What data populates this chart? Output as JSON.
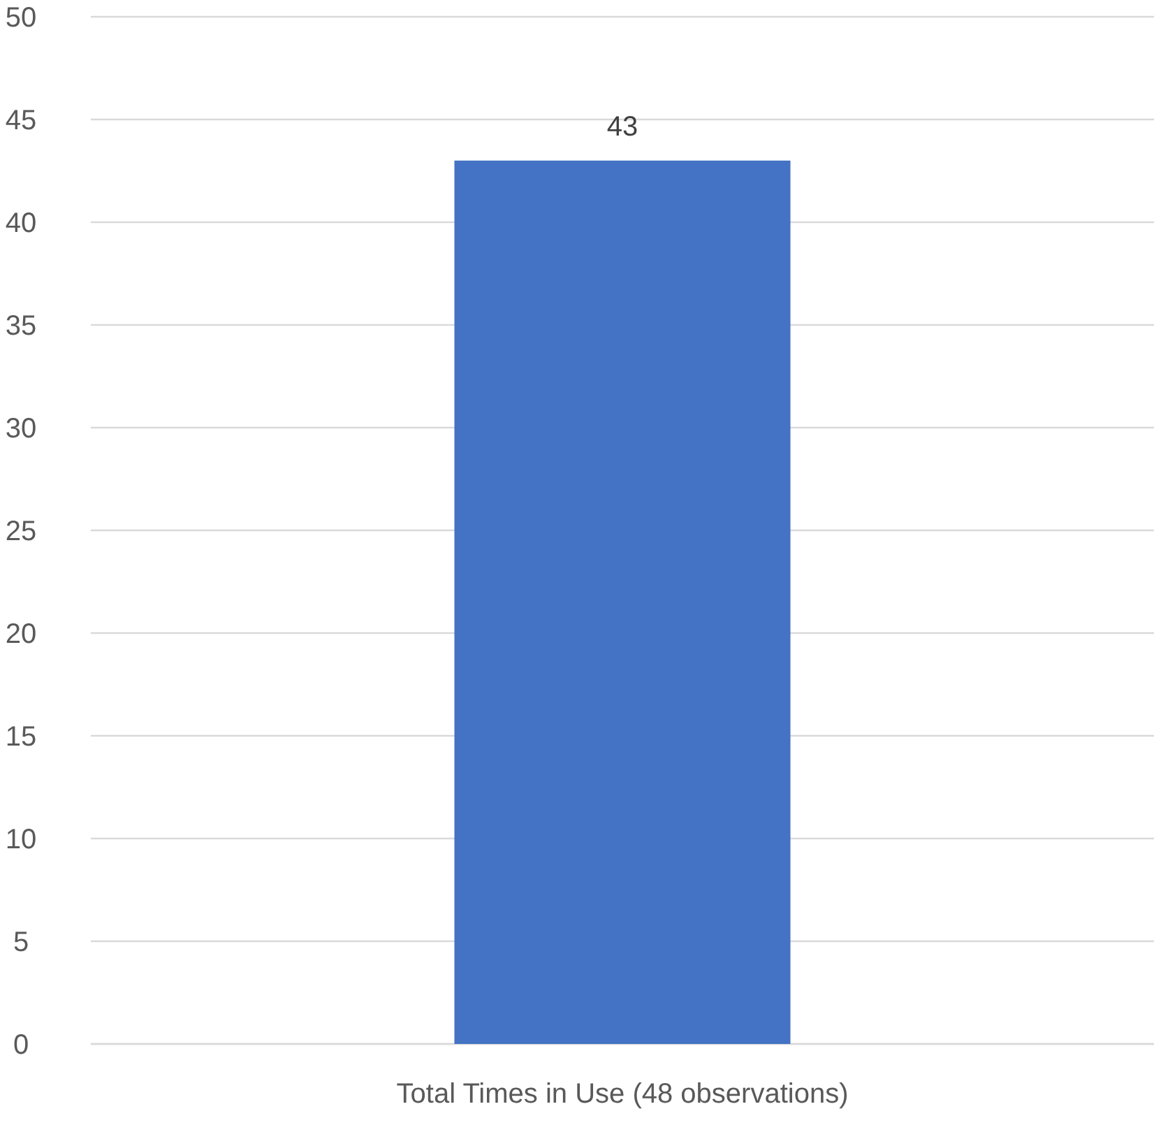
{
  "chart_data": {
    "type": "bar",
    "categories": [
      "Total Times in Use (48 observations)"
    ],
    "values": [
      43
    ],
    "color": "#4472c4",
    "ylim": [
      0,
      50
    ],
    "yticks": [
      0,
      5,
      10,
      15,
      20,
      25,
      30,
      35,
      40,
      45,
      50
    ],
    "grid": "y",
    "data_labels": true
  }
}
